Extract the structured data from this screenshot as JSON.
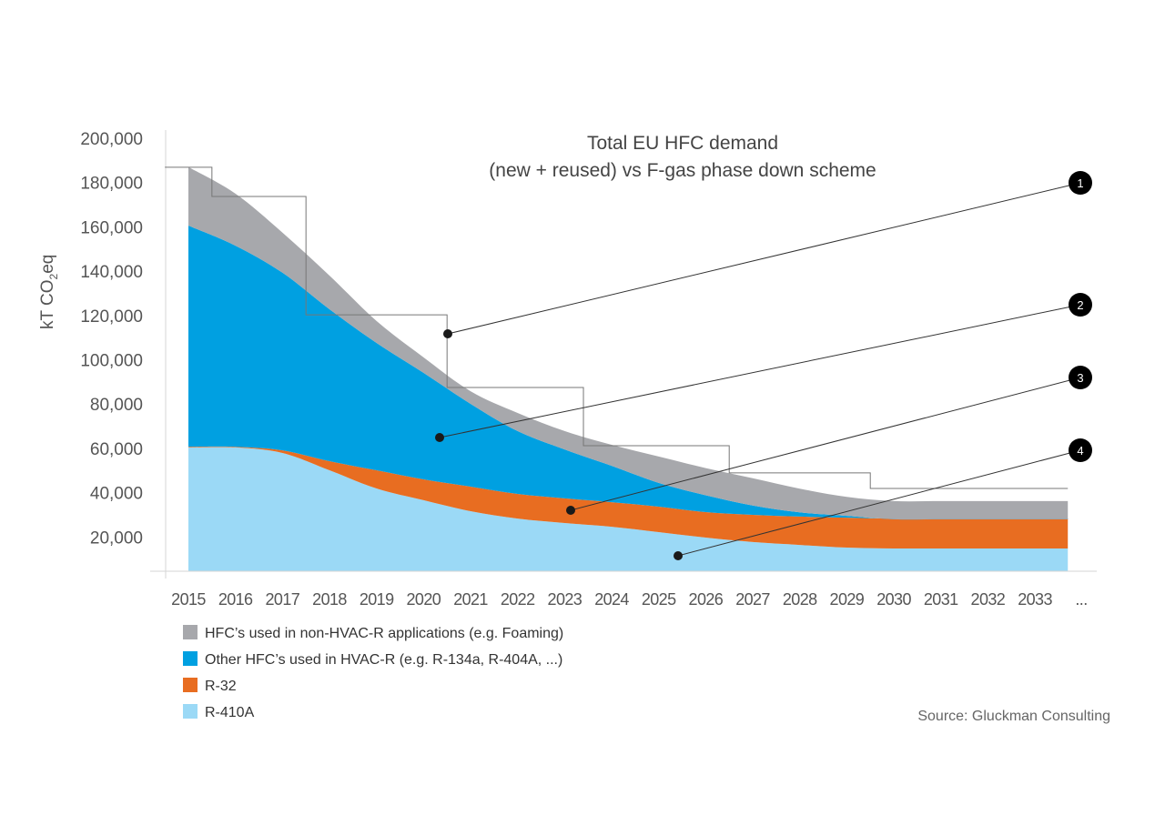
{
  "chart_data": {
    "type": "area",
    "stacked": true,
    "title": [
      "Total EU HFC demand",
      "(new + reused) vs F-gas phase down scheme"
    ],
    "ylabel": "kT CO2eq",
    "ylabel_parts": {
      "main": "kT CO",
      "sub": "2",
      "tail": "eq"
    },
    "xlabel": "",
    "ylim": [
      0,
      200000
    ],
    "y_ticks": [
      "20,000",
      "40,000",
      "60,000",
      "80,000",
      "100,000",
      "120,000",
      "140,000",
      "160,000",
      "180,000",
      "200,000"
    ],
    "y_tick_values": [
      20000,
      40000,
      60000,
      80000,
      100000,
      120000,
      140000,
      160000,
      180000,
      200000
    ],
    "x_ticks": [
      "2015",
      "2016",
      "2017",
      "2018",
      "2019",
      "2020",
      "2021",
      "2022",
      "2023",
      "2024",
      "2025",
      "2026",
      "2027",
      "2028",
      "2029",
      "2030",
      "2031",
      "2032",
      "2033",
      "..."
    ],
    "grid": false,
    "x": [
      2015,
      2016,
      2017,
      2018,
      2019,
      2020,
      2021,
      2022,
      2023,
      2024,
      2025,
      2026,
      2027,
      2028,
      2029,
      2030,
      2031,
      2032,
      2033,
      2033.7
    ],
    "series": [
      {
        "name": "R-410A",
        "color": "#9bd9f6",
        "values": [
          60400,
          60400,
          57900,
          50100,
          41900,
          36600,
          31600,
          28300,
          26300,
          24600,
          22200,
          19700,
          17700,
          16400,
          15200,
          14800,
          14800,
          14800,
          14800,
          14800
        ]
      },
      {
        "name": "R-32",
        "color": "#e86d21",
        "values": [
          300,
          300,
          1200,
          4100,
          8200,
          9400,
          11100,
          11100,
          11100,
          11100,
          11500,
          11500,
          12300,
          12800,
          13500,
          13500,
          13500,
          13500,
          13500,
          13500
        ]
      },
      {
        "name": "Other HFC’s used in HVAC-R (e.g. R-134a, R-404A, ...)",
        "color": "#00a0e1",
        "values": [
          99900,
          90800,
          80200,
          68600,
          57500,
          48100,
          37400,
          28400,
          22100,
          16400,
          10700,
          7600,
          4200,
          1900,
          800,
          -300,
          -300,
          -300,
          -300,
          -300
        ]
      },
      {
        "name": "HFC’s used in non-HVAC-R applications (e.g. Foaming)",
        "color": "#a7a8ac",
        "values": [
          26400,
          23500,
          18100,
          15200,
          9900,
          7000,
          5700,
          8200,
          8300,
          9500,
          11900,
          12300,
          12300,
          10700,
          8600,
          8200,
          8200,
          8200,
          8200,
          8200
        ]
      }
    ],
    "phase_down_steps": {
      "color": "#777777",
      "x_breaks": [
        2014.5,
        2015.5,
        2017.5,
        2020.5,
        2023.4,
        2026.5,
        2029.5,
        2033.7
      ],
      "values": [
        186900,
        173700,
        120300,
        87500,
        61200,
        48900,
        41900
      ]
    },
    "annotations": [
      "1",
      "2",
      "3",
      "4"
    ]
  },
  "legend": [
    {
      "label": "HFC’s used in non-HVAC-R applications (e.g. Foaming)",
      "color": "#a7a8ac"
    },
    {
      "label": "Other HFC’s used in HVAC-R (e.g. R-134a, R-404A, ...)",
      "color": "#00a0e1"
    },
    {
      "label": "R-32",
      "color": "#e86d21"
    },
    {
      "label": "R-410A",
      "color": "#9bd9f6"
    }
  ],
  "source": "Source: Gluckman Consulting"
}
